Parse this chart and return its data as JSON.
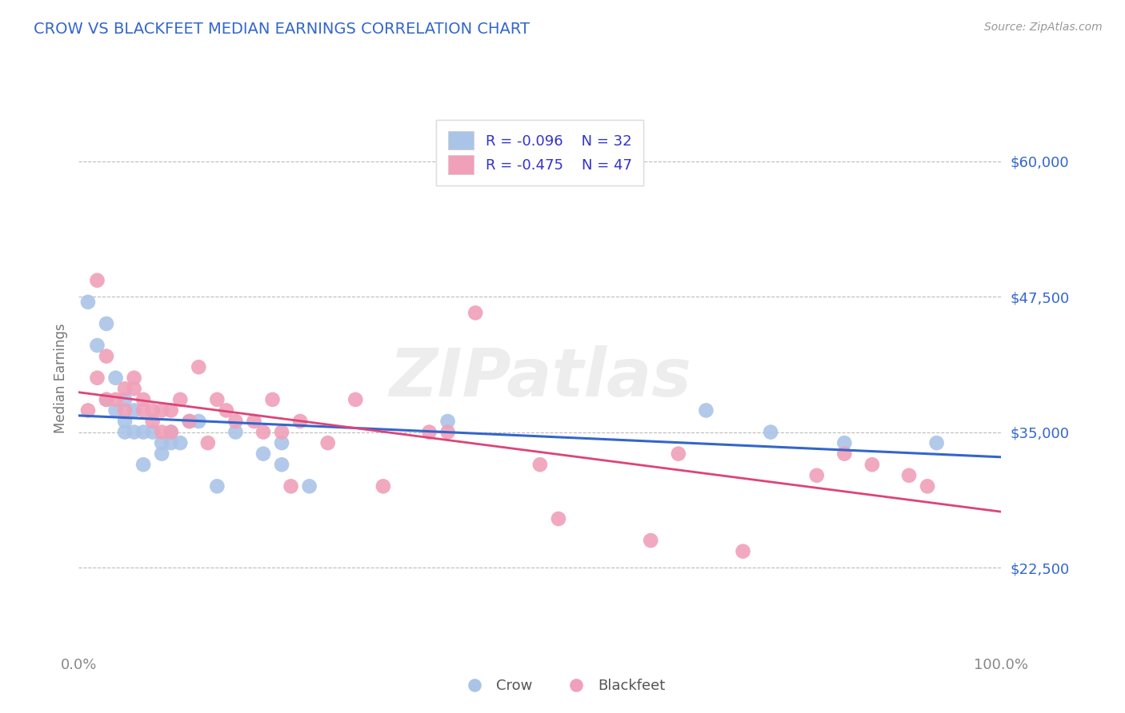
{
  "title": "CROW VS BLACKFEET MEDIAN EARNINGS CORRELATION CHART",
  "title_color": "#3366cc",
  "ylabel": "Median Earnings",
  "ylabel_color": "#777777",
  "source_text": "Source: ZipAtlas.com",
  "background_color": "#ffffff",
  "plot_bg_color": "#ffffff",
  "grid_color": "#bbbbbb",
  "xmin": 0.0,
  "xmax": 1.0,
  "ymin": 15000,
  "ymax": 65000,
  "yticks": [
    22500,
    35000,
    47500,
    60000
  ],
  "ytick_labels": [
    "$22,500",
    "$35,000",
    "$47,500",
    "$60,000"
  ],
  "xtick_labels": [
    "0.0%",
    "100.0%"
  ],
  "crow_R": -0.096,
  "crow_N": 32,
  "blackfeet_R": -0.475,
  "blackfeet_N": 47,
  "crow_color": "#aac4e8",
  "crow_line_color": "#3366cc",
  "blackfeet_color": "#f0a0b8",
  "blackfeet_line_color": "#dd4477",
  "legend_text_color": "#3333cc",
  "watermark": "ZIPatlas",
  "crow_x": [
    0.01,
    0.02,
    0.03,
    0.03,
    0.04,
    0.04,
    0.05,
    0.05,
    0.05,
    0.06,
    0.06,
    0.07,
    0.07,
    0.08,
    0.09,
    0.09,
    0.1,
    0.1,
    0.11,
    0.12,
    0.13,
    0.15,
    0.17,
    0.2,
    0.22,
    0.22,
    0.25,
    0.4,
    0.68,
    0.75,
    0.83,
    0.93
  ],
  "crow_y": [
    47000,
    43000,
    45000,
    38000,
    40000,
    37000,
    38000,
    36000,
    35000,
    37000,
    35000,
    35000,
    32000,
    35000,
    34000,
    33000,
    35000,
    34000,
    34000,
    36000,
    36000,
    30000,
    35000,
    33000,
    34000,
    32000,
    30000,
    36000,
    37000,
    35000,
    34000,
    34000
  ],
  "blackfeet_x": [
    0.01,
    0.02,
    0.02,
    0.03,
    0.03,
    0.04,
    0.05,
    0.05,
    0.06,
    0.06,
    0.07,
    0.07,
    0.08,
    0.08,
    0.09,
    0.09,
    0.1,
    0.1,
    0.11,
    0.12,
    0.13,
    0.14,
    0.15,
    0.16,
    0.17,
    0.19,
    0.2,
    0.21,
    0.22,
    0.23,
    0.24,
    0.27,
    0.3,
    0.33,
    0.38,
    0.4,
    0.43,
    0.5,
    0.52,
    0.62,
    0.65,
    0.72,
    0.8,
    0.83,
    0.86,
    0.9,
    0.92
  ],
  "blackfeet_y": [
    37000,
    49000,
    40000,
    38000,
    42000,
    38000,
    39000,
    37000,
    40000,
    39000,
    38000,
    37000,
    37000,
    36000,
    37000,
    35000,
    37000,
    35000,
    38000,
    36000,
    41000,
    34000,
    38000,
    37000,
    36000,
    36000,
    35000,
    38000,
    35000,
    30000,
    36000,
    34000,
    38000,
    30000,
    35000,
    35000,
    46000,
    32000,
    27000,
    25000,
    33000,
    24000,
    31000,
    33000,
    32000,
    31000,
    30000
  ]
}
